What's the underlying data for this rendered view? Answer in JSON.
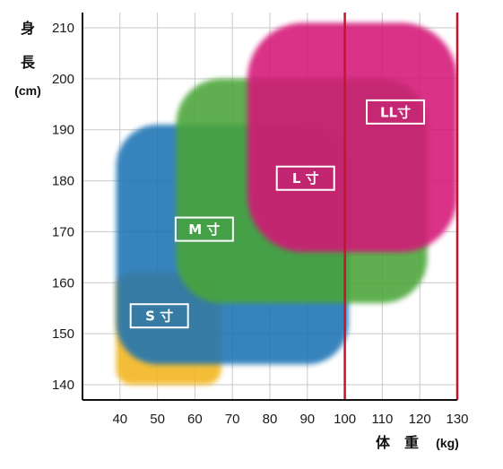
{
  "chart_data": {
    "type": "area",
    "xlabel": "体　重",
    "xunit": "(kg)",
    "ylabel_chars": [
      "身",
      "長"
    ],
    "yunit": "(cm)",
    "xlim": [
      30,
      130
    ],
    "ylim": [
      137,
      213
    ],
    "xticks": [
      40,
      50,
      60,
      70,
      80,
      90,
      100,
      110,
      120,
      130
    ],
    "yticks": [
      140,
      150,
      160,
      170,
      180,
      190,
      200,
      210
    ],
    "grid": true,
    "reference_lines_x": [
      100,
      130
    ],
    "series": [
      {
        "name": "S 寸",
        "color": "#F2B51C",
        "region": {
          "x": [
            39,
            67
          ],
          "y": [
            140,
            162
          ],
          "corner_radius": 4
        },
        "label_pos": {
          "x": 50.5,
          "y": 153.5
        }
      },
      {
        "name": "M 寸",
        "color": "#1A73B4",
        "region": {
          "x": [
            39,
            101
          ],
          "y": [
            144,
            191
          ],
          "corner_radius": 11
        },
        "label_pos": {
          "x": 62.5,
          "y": 170.5
        }
      },
      {
        "name": "L 寸",
        "color": "#4AA537",
        "region": {
          "x": [
            55,
            122
          ],
          "y": [
            156,
            200
          ],
          "corner_radius": 12
        },
        "label_pos": {
          "x": 89.5,
          "y": 180.5
        }
      },
      {
        "name": "LL寸",
        "color": "#D41577",
        "region": {
          "x": [
            74,
            130
          ],
          "y": [
            166,
            211
          ],
          "corner_radius": 15
        },
        "label_pos": {
          "x": 113.5,
          "y": 193.5
        }
      }
    ]
  }
}
